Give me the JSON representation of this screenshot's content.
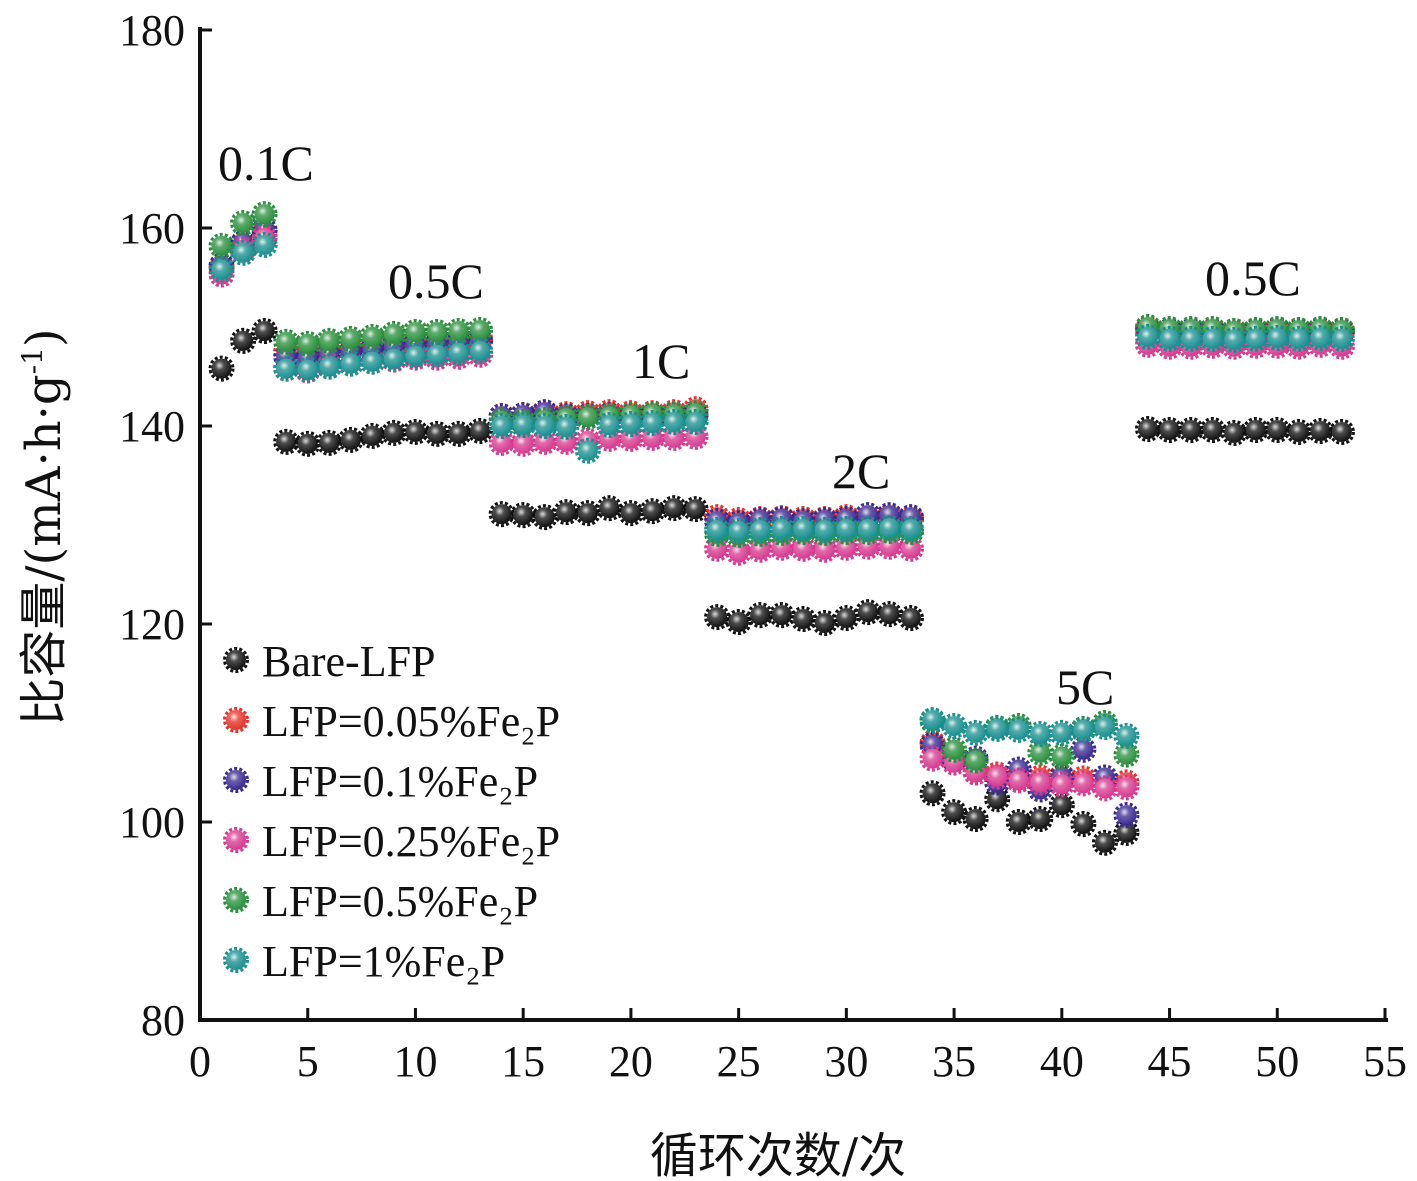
{
  "chart_data": {
    "type": "scatter",
    "xlabel": "循环次数/次",
    "ylabel_main": "比容量/(mA·h·g",
    "ylabel_sup": "-1",
    "ylabel_tail": ")",
    "xlim": [
      0,
      55
    ],
    "ylim": [
      80,
      180
    ],
    "xticks": [
      "0",
      "5",
      "10",
      "15",
      "20",
      "25",
      "30",
      "35",
      "40",
      "45",
      "50",
      "55"
    ],
    "yticks": [
      "80",
      "100",
      "120",
      "140",
      "160",
      "180"
    ],
    "grid": false,
    "legend_position": "lower-left",
    "rate_labels": [
      "0.1C",
      "0.5C",
      "1C",
      "2C",
      "5C",
      "0.5C"
    ],
    "series": [
      {
        "name": "Bare-LFP",
        "color": "#111111",
        "x": [
          1,
          2,
          3,
          4,
          5,
          6,
          7,
          8,
          9,
          10,
          11,
          12,
          13,
          14,
          15,
          16,
          17,
          18,
          19,
          20,
          21,
          22,
          23,
          24,
          25,
          26,
          27,
          28,
          29,
          30,
          31,
          32,
          33,
          34,
          35,
          36,
          37,
          38,
          39,
          40,
          41,
          42,
          43,
          44,
          45,
          46,
          47,
          48,
          49,
          50,
          51,
          52,
          53
        ],
        "values": [
          145.8,
          148.6,
          149.6,
          138.4,
          138.2,
          138.3,
          138.6,
          139.0,
          139.3,
          139.4,
          139.2,
          139.2,
          139.5,
          131.1,
          131.0,
          130.8,
          131.3,
          131.2,
          131.7,
          131.2,
          131.4,
          131.7,
          131.6,
          120.7,
          120.2,
          120.9,
          120.9,
          120.5,
          120.1,
          120.6,
          121.2,
          121.0,
          120.6,
          102.9,
          101.0,
          100.3,
          102.3,
          100.0,
          100.3,
          101.7,
          99.8,
          97.9,
          98.9,
          139.7,
          139.6,
          139.6,
          139.6,
          139.3,
          139.6,
          139.6,
          139.4,
          139.5,
          139.4
        ]
      },
      {
        "name": "LFP=0.05%Fe₂P",
        "color": "#e5322a",
        "x": [
          1,
          2,
          3,
          4,
          5,
          6,
          7,
          8,
          9,
          10,
          11,
          12,
          13,
          14,
          15,
          16,
          17,
          18,
          19,
          20,
          21,
          22,
          23,
          24,
          25,
          26,
          27,
          28,
          29,
          30,
          31,
          32,
          33,
          34,
          35,
          36,
          37,
          38,
          39,
          40,
          41,
          42,
          43,
          44,
          45,
          46,
          47,
          48,
          49,
          50,
          51,
          52,
          53
        ],
        "values": [
          156.0,
          158.4,
          159.4,
          147.5,
          147.2,
          147.6,
          147.8,
          148.0,
          148.2,
          148.5,
          148.5,
          148.6,
          148.8,
          141.0,
          141.1,
          141.2,
          141.2,
          141.3,
          141.4,
          141.3,
          141.3,
          141.4,
          141.7,
          130.8,
          130.5,
          130.6,
          130.7,
          130.6,
          130.6,
          130.8,
          130.6,
          130.8,
          130.6,
          108.0,
          106.8,
          105.0,
          104.8,
          104.4,
          104.5,
          104.6,
          104.4,
          104.0,
          104.0,
          149.8,
          149.6,
          149.6,
          149.6,
          149.4,
          149.5,
          149.6,
          149.5,
          149.6,
          149.5
        ]
      },
      {
        "name": "LFP=0.1%Fe₂P",
        "color": "#3b2a8f",
        "x": [
          1,
          2,
          3,
          4,
          5,
          6,
          7,
          8,
          9,
          10,
          11,
          12,
          13,
          14,
          15,
          16,
          17,
          18,
          19,
          20,
          21,
          22,
          23,
          24,
          25,
          26,
          27,
          28,
          29,
          30,
          31,
          32,
          33,
          34,
          35,
          36,
          37,
          38,
          39,
          40,
          41,
          42,
          43,
          44,
          45,
          46,
          47,
          48,
          49,
          50,
          51,
          52,
          53
        ],
        "values": [
          156.2,
          158.5,
          159.8,
          147.0,
          146.8,
          147.2,
          147.4,
          147.7,
          148.0,
          148.2,
          148.2,
          148.4,
          148.6,
          141.0,
          141.1,
          141.4,
          141.0,
          141.0,
          141.1,
          141.0,
          141.0,
          141.1,
          141.1,
          130.4,
          130.2,
          130.5,
          130.6,
          130.4,
          130.5,
          130.6,
          131.0,
          131.0,
          130.8,
          107.8,
          106.3,
          106.4,
          104.0,
          105.3,
          103.3,
          104.5,
          107.3,
          104.5,
          100.7,
          149.6,
          149.6,
          149.6,
          149.5,
          149.6,
          149.6,
          149.7,
          149.6,
          149.7,
          149.6
        ]
      },
      {
        "name": "LFP=0.25%Fe₂P",
        "color": "#d63a8f",
        "x": [
          1,
          2,
          3,
          4,
          5,
          6,
          7,
          8,
          9,
          10,
          11,
          12,
          13,
          14,
          15,
          16,
          17,
          18,
          19,
          20,
          21,
          22,
          23,
          24,
          25,
          26,
          27,
          28,
          29,
          30,
          31,
          32,
          33,
          34,
          35,
          36,
          37,
          38,
          39,
          40,
          41,
          42,
          43,
          44,
          45,
          46,
          47,
          48,
          49,
          50,
          51,
          52,
          53
        ],
        "values": [
          155.3,
          157.8,
          159.0,
          145.8,
          145.6,
          146.1,
          146.3,
          146.5,
          146.7,
          146.9,
          146.9,
          147.0,
          147.2,
          138.3,
          138.2,
          138.4,
          138.4,
          138.5,
          138.7,
          138.7,
          138.8,
          138.8,
          138.9,
          127.6,
          127.2,
          127.5,
          127.7,
          127.6,
          127.5,
          127.7,
          127.8,
          127.8,
          127.6,
          106.4,
          106.0,
          105.0,
          104.6,
          104.2,
          104.0,
          103.8,
          103.9,
          103.4,
          103.5,
          148.2,
          148.0,
          148.0,
          148.1,
          148.0,
          148.1,
          148.1,
          148.0,
          148.2,
          148.0
        ]
      },
      {
        "name": "LFP=0.5%Fe₂P",
        "color": "#2a8f3d",
        "x": [
          1,
          2,
          3,
          4,
          5,
          6,
          7,
          8,
          9,
          10,
          11,
          12,
          13,
          14,
          15,
          16,
          17,
          18,
          19,
          20,
          21,
          22,
          23,
          24,
          25,
          26,
          27,
          28,
          29,
          30,
          31,
          32,
          33,
          34,
          35,
          36,
          37,
          38,
          39,
          40,
          41,
          42,
          43,
          44,
          45,
          46,
          47,
          48,
          49,
          50,
          51,
          52,
          53
        ],
        "values": [
          158.2,
          160.5,
          161.4,
          148.5,
          148.3,
          148.6,
          148.8,
          149.0,
          149.3,
          149.5,
          149.5,
          149.6,
          149.7,
          140.5,
          140.4,
          140.6,
          140.8,
          140.9,
          141.0,
          141.1,
          141.2,
          141.2,
          141.3,
          129.1,
          129.0,
          129.1,
          129.2,
          129.3,
          129.2,
          129.3,
          129.3,
          129.4,
          129.3,
          110.2,
          107.3,
          106.2,
          109.5,
          109.7,
          107.0,
          106.6,
          109.4,
          110.0,
          106.8,
          150.0,
          149.8,
          149.8,
          149.8,
          149.6,
          149.7,
          149.8,
          149.7,
          149.8,
          149.7
        ]
      },
      {
        "name": "LFP=1%Fe₂P",
        "color": "#1a8f8f",
        "x": [
          1,
          2,
          3,
          4,
          5,
          6,
          7,
          8,
          9,
          10,
          11,
          12,
          13,
          14,
          15,
          16,
          17,
          18,
          19,
          20,
          21,
          22,
          23,
          24,
          25,
          26,
          27,
          28,
          29,
          30,
          31,
          32,
          33,
          34,
          35,
          36,
          37,
          38,
          39,
          40,
          41,
          42,
          43,
          44,
          45,
          46,
          47,
          48,
          49,
          50,
          51,
          52,
          53
        ],
        "values": [
          155.8,
          157.5,
          158.3,
          145.8,
          145.7,
          146.0,
          146.3,
          146.5,
          146.8,
          147.1,
          147.2,
          147.4,
          147.6,
          140.0,
          140.1,
          140.0,
          139.9,
          137.5,
          140.1,
          140.2,
          140.3,
          140.4,
          140.4,
          129.5,
          129.4,
          129.5,
          129.6,
          129.6,
          129.5,
          129.6,
          129.6,
          129.7,
          129.6,
          110.3,
          109.7,
          109.0,
          109.4,
          109.3,
          108.9,
          109.0,
          109.3,
          109.6,
          108.7,
          149.0,
          148.8,
          148.8,
          148.8,
          148.7,
          148.8,
          148.9,
          148.8,
          148.9,
          148.8
        ]
      }
    ]
  }
}
